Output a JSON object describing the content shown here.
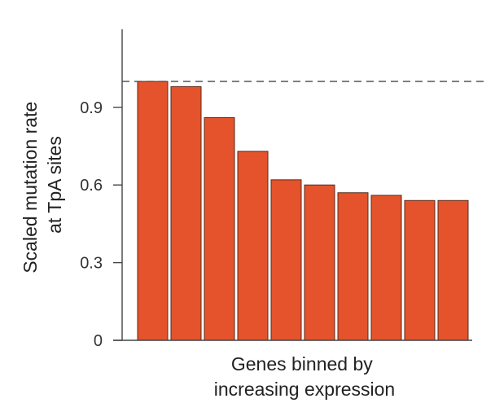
{
  "chart_data": {
    "type": "bar",
    "title": "",
    "xlabel_lines": [
      "Genes binned by",
      "increasing expression"
    ],
    "ylabel_lines": [
      "Scaled mutation rate",
      "at TpA sites"
    ],
    "categories": [
      "",
      "",
      "",
      "",
      "",
      "",
      "",
      "",
      "",
      ""
    ],
    "values": [
      1.0,
      0.98,
      0.86,
      0.73,
      0.62,
      0.6,
      0.57,
      0.56,
      0.54,
      0.54
    ],
    "ylim": [
      0,
      1.2
    ],
    "yticks": [
      0,
      0.3,
      0.6,
      0.9
    ],
    "ytick_labels": [
      "0",
      "0.3",
      "0.6",
      "0.9"
    ],
    "reference_line": {
      "value": 1.0,
      "style": "dashed"
    },
    "grid": false,
    "colors": {
      "bar": "#E4532B",
      "bar_edge": "#5a2a1a",
      "axis": "#444444",
      "reference": "#555555"
    }
  }
}
